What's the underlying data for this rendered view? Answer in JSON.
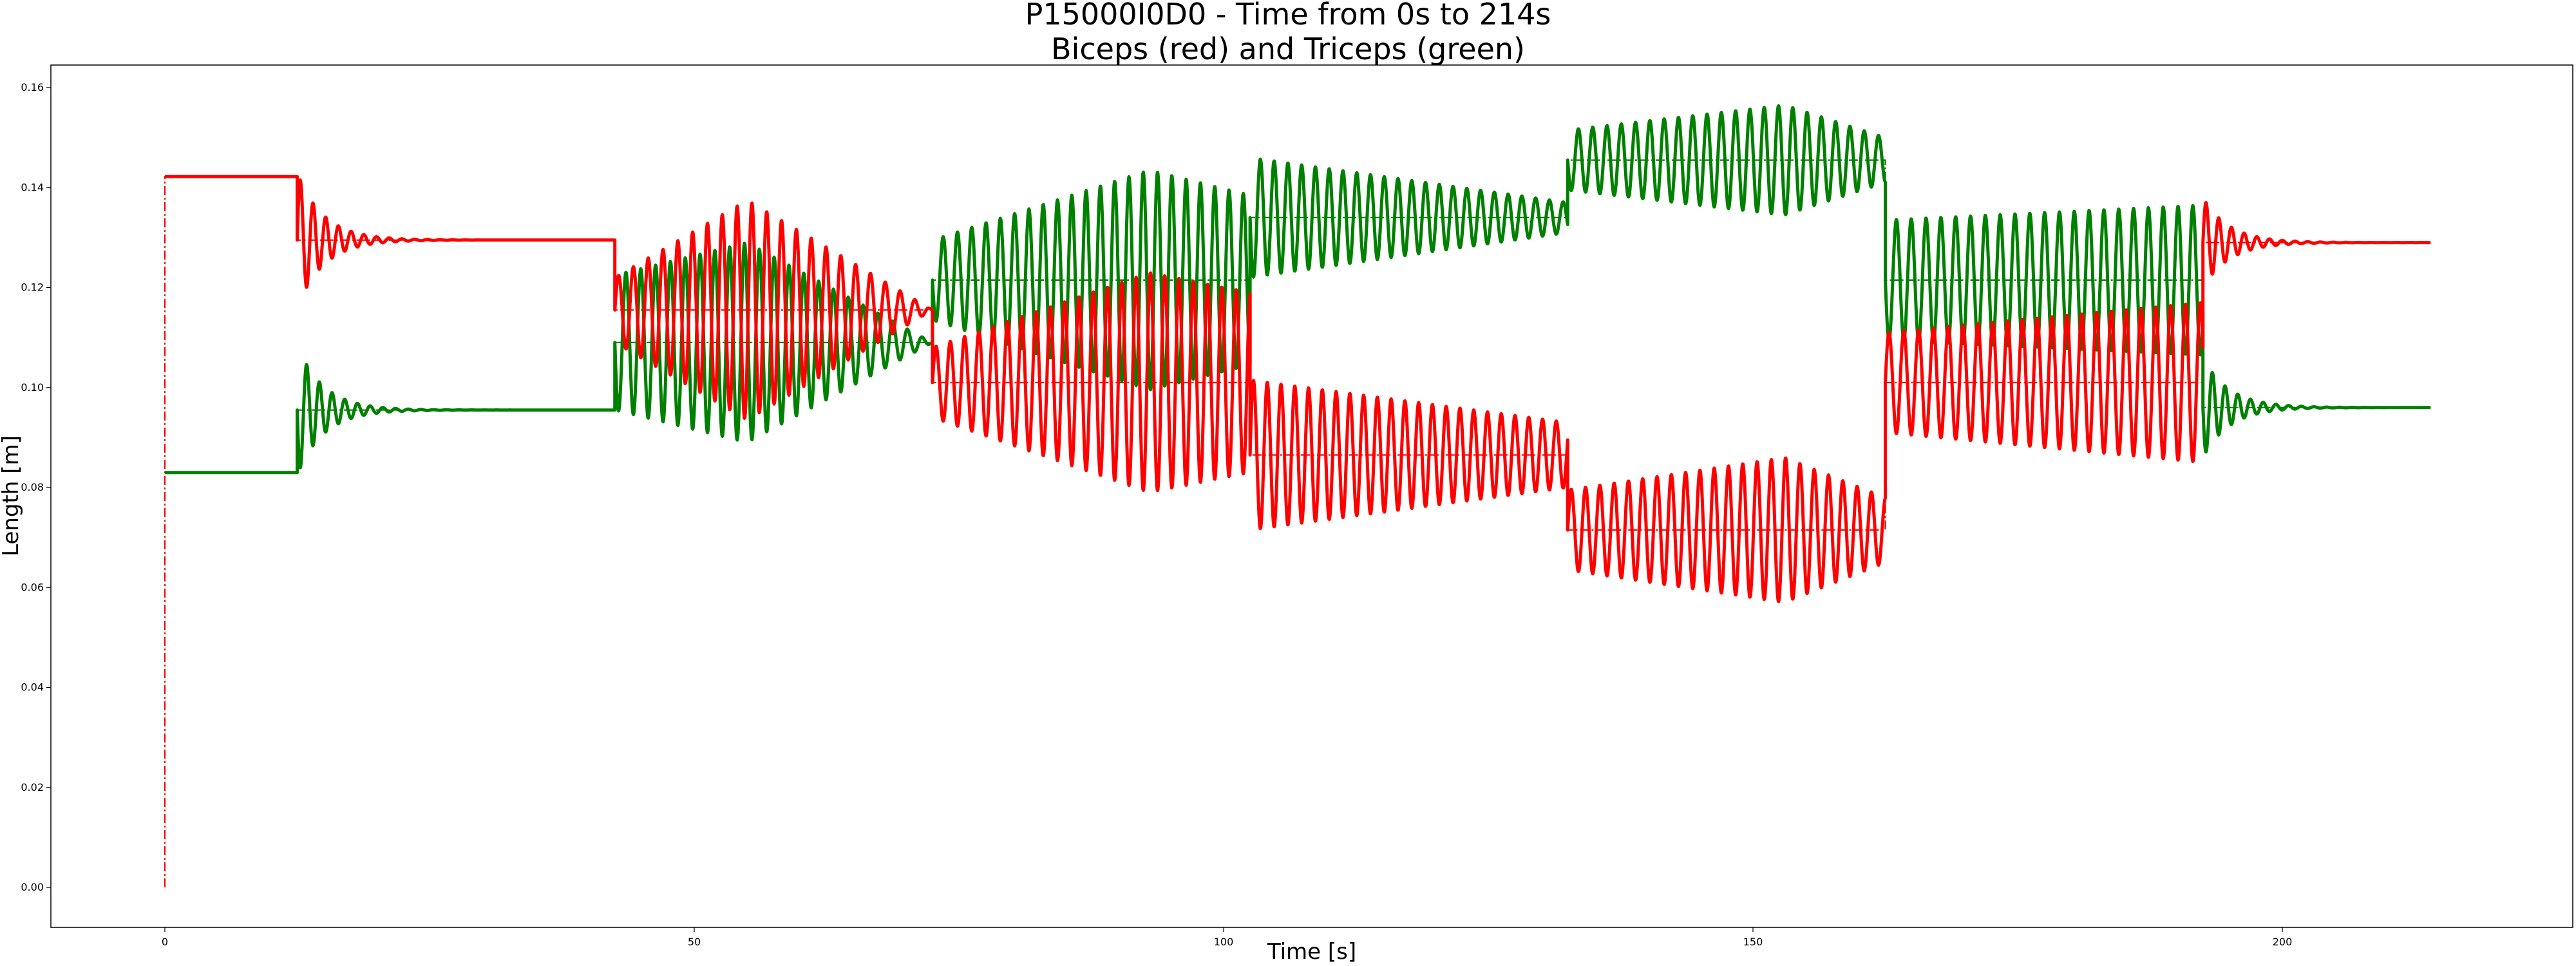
{
  "chart_data": {
    "type": "line",
    "title": "P15000I0D0 - Time from 0s to 214s",
    "subtitle": "Biceps (red) and Triceps (green)",
    "xlabel": "Time [s]",
    "ylabel": "Length [m]",
    "xlim": [
      -10.6,
      225
    ],
    "ylim": [
      -0.008,
      0.165
    ],
    "xticks": [
      0,
      50,
      100,
      150,
      200
    ],
    "xtick_labels": [
      "0",
      "50",
      "100",
      "150",
      "200"
    ],
    "yticks": [
      0.0,
      0.02,
      0.04,
      0.06,
      0.08,
      0.1,
      0.12,
      0.14,
      0.16
    ],
    "ytick_labels": [
      "0.00",
      "0.02",
      "0.04",
      "0.06",
      "0.08",
      "0.10",
      "0.12",
      "0.14",
      "0.16"
    ],
    "grid": false,
    "legend": "none",
    "colors": {
      "biceps": "#ff0000",
      "triceps": "#008000"
    },
    "segments": [
      {
        "t_start": 0.0,
        "t_end": 12.5,
        "biceps": {
          "mode": "const",
          "level": 0.1422
        },
        "triceps": {
          "mode": "const",
          "level": 0.083
        }
      },
      {
        "t_start": 12.5,
        "t_end": 42.5,
        "biceps": {
          "mode": "decay",
          "level": 0.1295,
          "from": 0.1422,
          "amp": 0.0135,
          "tau": 2.5,
          "period": 1.2
        },
        "triceps": {
          "mode": "decay",
          "level": 0.0955,
          "from": 0.083,
          "amp": 0.013,
          "tau": 2.5,
          "period": 1.2
        }
      },
      {
        "t_start": 42.5,
        "t_end": 72.5,
        "biceps": {
          "mode": "osc",
          "center": 0.1155,
          "amp0": 0.0065,
          "amp1": 0.0,
          "amp_peak": 0.022,
          "t_peak": 55,
          "period": 1.4
        },
        "triceps": {
          "mode": "osc",
          "center": 0.109,
          "amp0": 0.0135,
          "amp1": 0.0,
          "amp_peak": 0.02,
          "t_peak": 55,
          "period": 1.4
        }
      },
      {
        "t_start": 72.5,
        "t_end": 102.5,
        "biceps": {
          "mode": "osc",
          "center": 0.101,
          "amp0": 0.007,
          "amp1": 0.018,
          "amp_peak": 0.022,
          "t_peak": 93,
          "period": 1.35
        },
        "triceps": {
          "mode": "osc",
          "center": 0.1215,
          "amp0": 0.008,
          "amp1": 0.017,
          "amp_peak": 0.022,
          "t_peak": 93,
          "period": 1.35
        }
      },
      {
        "t_start": 102.5,
        "t_end": 132.5,
        "biceps": {
          "mode": "osc",
          "center": 0.0865,
          "amp0": 0.015,
          "amp1": 0.0065,
          "amp_peak": 0.015,
          "t_peak": 102.5,
          "period": 1.3
        },
        "triceps": {
          "mode": "osc",
          "center": 0.134,
          "amp0": 0.012,
          "amp1": 0.003,
          "amp_peak": 0.012,
          "t_peak": 102.5,
          "period": 1.3
        }
      },
      {
        "t_start": 132.5,
        "t_end": 162.5,
        "biceps": {
          "mode": "osc",
          "center": 0.0715,
          "amp0": 0.008,
          "amp1": 0.0065,
          "amp_peak": 0.0145,
          "t_peak": 153,
          "period": 1.35
        },
        "triceps": {
          "mode": "osc",
          "center": 0.1455,
          "amp0": 0.006,
          "amp1": 0.0045,
          "amp_peak": 0.011,
          "t_peak": 153,
          "period": 1.35
        }
      },
      {
        "t_start": 162.5,
        "t_end": 192.5,
        "biceps": {
          "mode": "osc",
          "center": 0.101,
          "amp0": 0.01,
          "amp1": 0.016,
          "amp_peak": 0.016,
          "t_peak": 192.5,
          "period": 1.4
        },
        "triceps": {
          "mode": "osc",
          "center": 0.1215,
          "amp0": 0.012,
          "amp1": 0.015,
          "amp_peak": 0.015,
          "t_peak": 192.5,
          "period": 1.4
        }
      },
      {
        "t_start": 192.5,
        "t_end": 214.0,
        "biceps": {
          "mode": "decay",
          "level": 0.129,
          "from": 0.101,
          "amp": 0.009,
          "tau": 2.5,
          "period": 1.2
        },
        "triceps": {
          "mode": "decay",
          "level": 0.096,
          "from": 0.1215,
          "amp": 0.01,
          "tau": 2.5,
          "period": 1.2
        }
      }
    ],
    "biceps_reference": [
      [
        0,
        0.0
      ],
      [
        0,
        0.1422
      ],
      [
        12.5,
        0.1422
      ],
      [
        12.5,
        0.1295
      ],
      [
        42.5,
        0.1295
      ],
      [
        42.5,
        0.1155
      ],
      [
        72.5,
        0.1155
      ],
      [
        72.5,
        0.101
      ],
      [
        102.5,
        0.101
      ],
      [
        102.5,
        0.0865
      ],
      [
        132.5,
        0.0865
      ],
      [
        132.5,
        0.0715
      ],
      [
        162.5,
        0.0715
      ],
      [
        162.5,
        0.101
      ],
      [
        192.5,
        0.101
      ],
      [
        192.5,
        0.129
      ],
      [
        214,
        0.129
      ]
    ],
    "triceps_reference": [
      [
        0,
        0.083
      ],
      [
        12.5,
        0.083
      ],
      [
        12.5,
        0.0955
      ],
      [
        42.5,
        0.0955
      ],
      [
        42.5,
        0.109
      ],
      [
        72.5,
        0.109
      ],
      [
        72.5,
        0.1215
      ],
      [
        102.5,
        0.1215
      ],
      [
        102.5,
        0.134
      ],
      [
        132.5,
        0.134
      ],
      [
        132.5,
        0.1455
      ],
      [
        162.5,
        0.1455
      ],
      [
        162.5,
        0.1215
      ],
      [
        192.5,
        0.1215
      ],
      [
        192.5,
        0.096
      ],
      [
        214,
        0.096
      ]
    ]
  }
}
